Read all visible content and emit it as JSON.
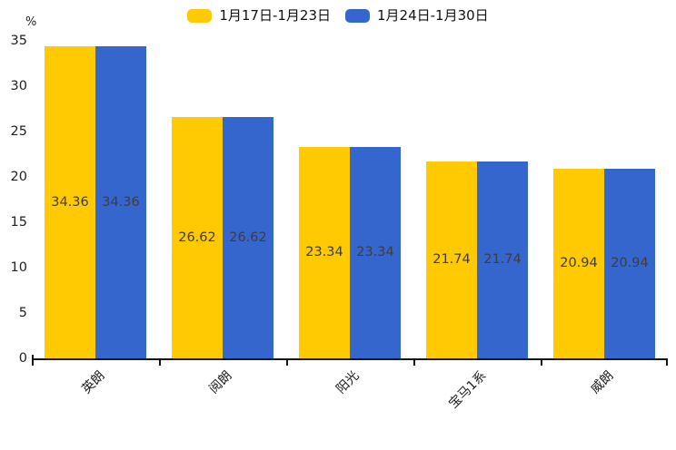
{
  "unit_label": "%",
  "legend": {
    "items": [
      {
        "label": "1月17日-1月23日",
        "color": "#FFCA02"
      },
      {
        "label": "1月24日-1月30日",
        "color": "#3566CD"
      }
    ]
  },
  "colors": {
    "series_yellow": "#FFCA02",
    "series_blue": "#3566CD",
    "axis_line": "#141414",
    "value_label_text": "#3d3d3d",
    "tick_label_text": "#222222",
    "background": "#ffffff"
  },
  "chart_data": {
    "type": "bar",
    "title": "",
    "categories": [
      "英朗",
      "阅朗",
      "阳光",
      "宝马1系",
      "威朗"
    ],
    "series": [
      {
        "name": "1月17日-1月23日",
        "color": "#FFCA02",
        "values": [
          34.36,
          26.62,
          23.34,
          21.74,
          20.94
        ]
      },
      {
        "name": "1月24日-1月30日",
        "color": "#3566CD",
        "values": [
          34.36,
          26.62,
          23.34,
          21.74,
          20.94
        ]
      }
    ],
    "xlabel": "",
    "ylabel": "%",
    "ylim": [
      0,
      35
    ],
    "yticks": [
      0,
      5,
      10,
      15,
      20,
      25,
      30,
      35
    ],
    "grid": false,
    "legend_position": "top-center",
    "value_labels": "centered-inside-bars",
    "x_tick_label_rotation_deg": 45
  }
}
